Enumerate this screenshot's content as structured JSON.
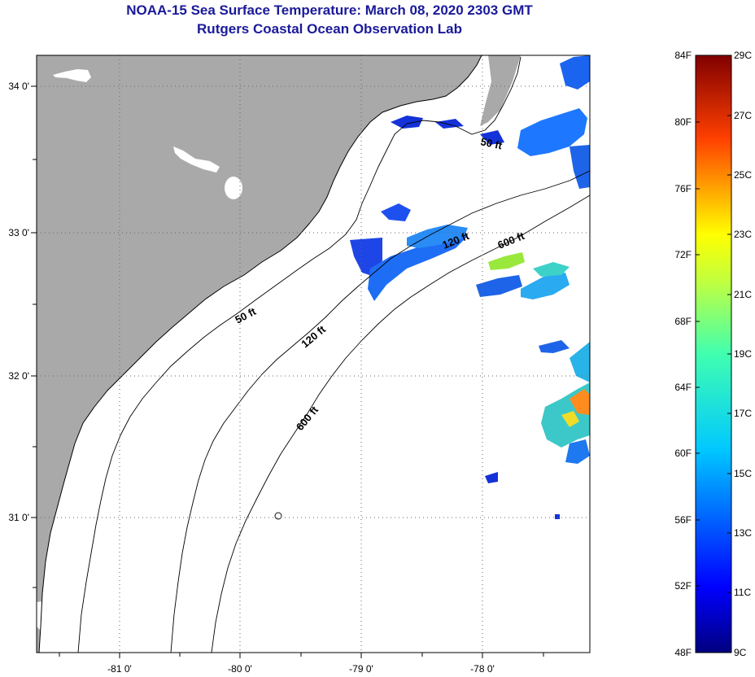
{
  "header": {
    "title": "NOAA-15 Sea Surface Temperature:  March 08, 2020 2303 GMT",
    "subtitle": "Rutgers Coastal Ocean Observation Lab"
  },
  "map": {
    "lat_labels": [
      "34 0'",
      "33 0'",
      "32 0'",
      "31 0'"
    ],
    "lon_labels": [
      "-81 0'",
      "-80 0'",
      "-79 0'",
      "-78 0'"
    ],
    "contour_labels": [
      "50 ft",
      "120 ft",
      "600 ft",
      "50 ft",
      "120 ft",
      "600 ft"
    ]
  },
  "colorbar": {
    "fahrenheit_labels": [
      "84F",
      "80F",
      "76F",
      "72F",
      "68F",
      "64F",
      "60F",
      "56F",
      "52F",
      "48F"
    ],
    "celsius_labels": [
      "29C",
      "27C",
      "25C",
      "23C",
      "21C",
      "19C",
      "17C",
      "15C",
      "13C",
      "11C",
      "9C"
    ]
  },
  "colors": {
    "land": "#a9a9a9",
    "ocean": "#ffffff",
    "title": "#1a1a9a"
  }
}
